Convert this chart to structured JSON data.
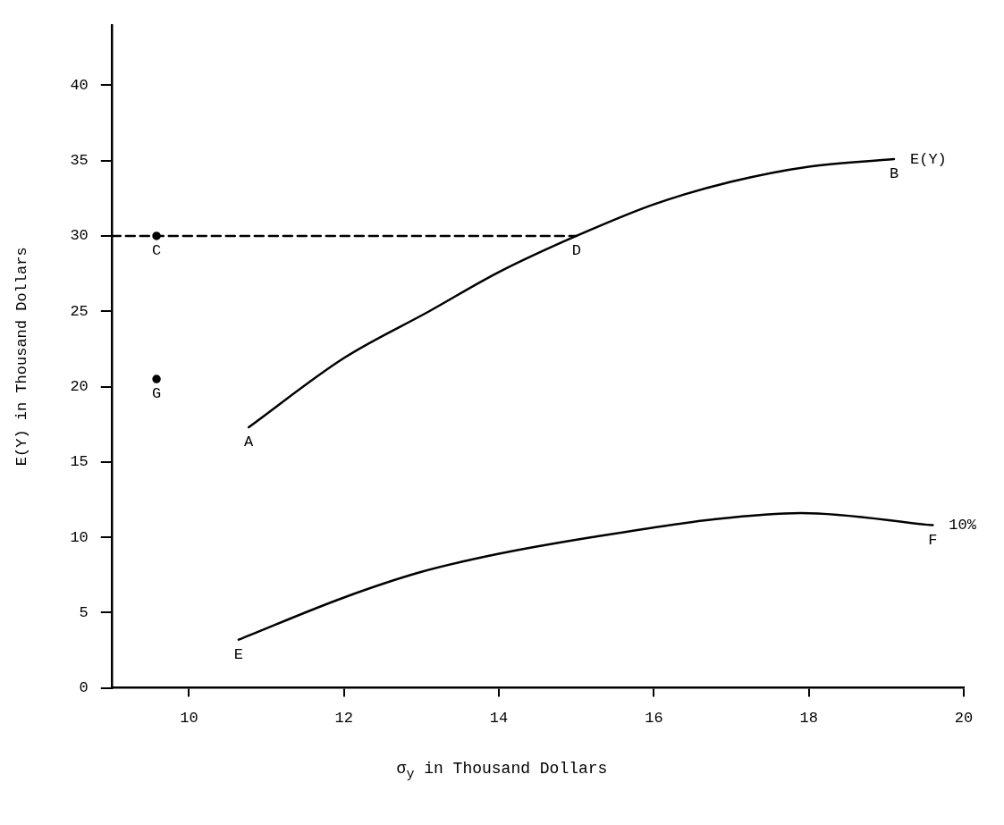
{
  "chart_data": {
    "type": "line",
    "xlabel": "σ$_{y}$ in Thousand Dollars",
    "ylabel": "E(Y) in Thousand Dollars",
    "xlim": [
      9,
      20
    ],
    "xticks": [
      10,
      12,
      14,
      16,
      18,
      20
    ],
    "ylim": [
      0,
      44
    ],
    "yticks": [
      0,
      5,
      10,
      15,
      20,
      25,
      30,
      35,
      40
    ],
    "grid": false,
    "legend": false,
    "series": [
      {
        "name": "E(Y)",
        "color": "#000000",
        "marker": "none",
        "line_style": "solid",
        "x": [
          10.77,
          12,
          13.1,
          14,
          15,
          16,
          17,
          18,
          19.1
        ],
        "values": [
          17.3,
          21.9,
          25,
          27.6,
          30,
          32.1,
          33.6,
          34.6,
          35.1
        ]
      },
      {
        "name": "10%",
        "color": "#000000",
        "marker": "none",
        "line_style": "solid",
        "x": [
          10.64,
          12,
          13,
          14,
          15.2,
          16.8,
          17.9,
          19.6
        ],
        "values": [
          3.2,
          6,
          7.7,
          8.9,
          10,
          11.2,
          11.6,
          10.8
        ]
      },
      {
        "color": "#000000",
        "marker": "none",
        "line_style": "dashed",
        "x": [
          9,
          15
        ],
        "values": [
          30,
          30
        ]
      },
      {
        "type": "scatter",
        "color": "#000000",
        "marker": "circle",
        "x": [
          9.58,
          9.58
        ],
        "values": [
          30,
          20.5
        ]
      }
    ],
    "annotations": [
      {
        "text": "A",
        "x": 10.77,
        "y": 17.3
      },
      {
        "text": "B",
        "x": 19.1,
        "y": 35.1
      },
      {
        "text": "C",
        "x": 9.58,
        "y": 30
      },
      {
        "text": "D",
        "x": 15,
        "y": 30
      },
      {
        "text": "E",
        "x": 10.64,
        "y": 3.2
      },
      {
        "text": "F",
        "x": 19.6,
        "y": 10.8
      },
      {
        "text": "G",
        "x": 9.58,
        "y": 20.5
      }
    ]
  }
}
